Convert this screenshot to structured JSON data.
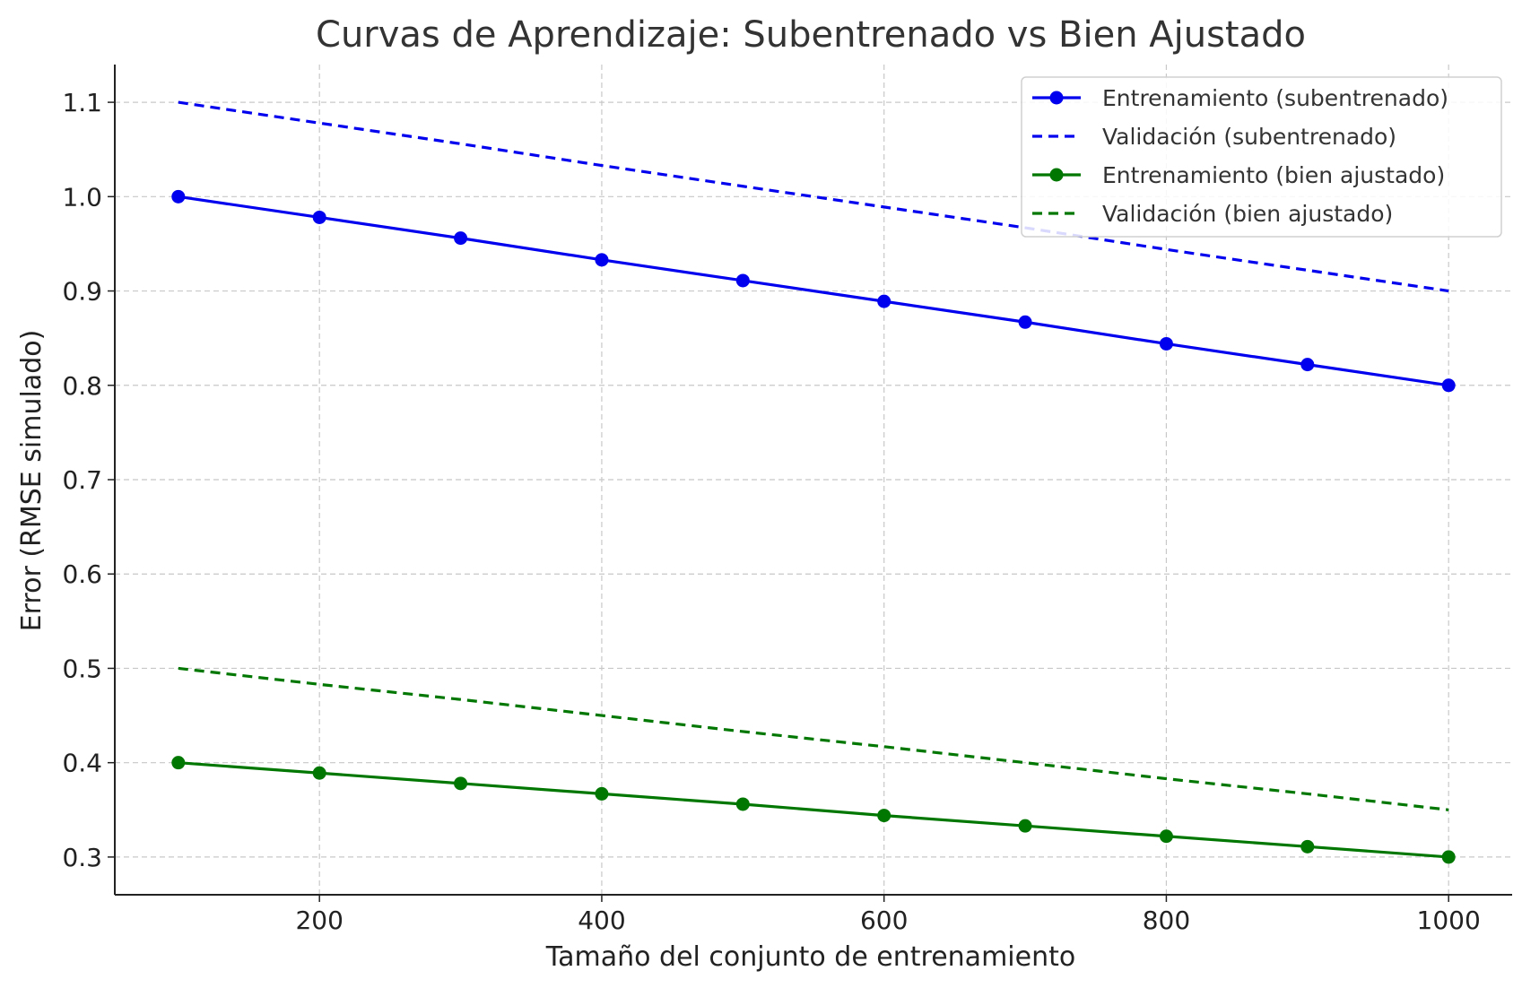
{
  "chart_data": {
    "type": "line",
    "title": "Curvas de Aprendizaje: Subentrenado vs Bien Ajustado",
    "xlabel": "Tamaño del conjunto de entrenamiento",
    "ylabel": "Error (RMSE simulado)",
    "xlim": [
      55,
      1045
    ],
    "ylim": [
      0.26,
      1.14
    ],
    "xticks": [
      200,
      400,
      600,
      800,
      1000
    ],
    "xtick_labels": [
      "200",
      "400",
      "600",
      "800",
      "1000"
    ],
    "yticks": [
      0.3,
      0.4,
      0.5,
      0.6,
      0.7,
      0.8,
      0.9,
      1.0,
      1.1
    ],
    "ytick_labels": [
      "0.3",
      "0.4",
      "0.5",
      "0.6",
      "0.7",
      "0.8",
      "0.9",
      "1.0",
      "1.1"
    ],
    "grid": true,
    "legend_position": "top-right",
    "x": [
      100,
      200,
      300,
      400,
      500,
      600,
      700,
      800,
      900,
      1000
    ],
    "series": [
      {
        "name": "Entrenamiento (subentrenado)",
        "color": "#0000ee",
        "style": "solid",
        "marker": "circle",
        "values": [
          1.0,
          0.978,
          0.956,
          0.933,
          0.911,
          0.889,
          0.867,
          0.844,
          0.822,
          0.8
        ]
      },
      {
        "name": "Validación (subentrenado)",
        "color": "#0000ee",
        "style": "dashed",
        "marker": "none",
        "values": [
          1.1,
          1.078,
          1.056,
          1.033,
          1.011,
          0.989,
          0.967,
          0.944,
          0.922,
          0.9
        ]
      },
      {
        "name": "Entrenamiento (bien ajustado)",
        "color": "#007700",
        "style": "solid",
        "marker": "circle",
        "values": [
          0.4,
          0.389,
          0.378,
          0.367,
          0.356,
          0.344,
          0.333,
          0.322,
          0.311,
          0.3
        ]
      },
      {
        "name": "Validación (bien ajustado)",
        "color": "#007700",
        "style": "dashed",
        "marker": "none",
        "values": [
          0.5,
          0.483,
          0.467,
          0.45,
          0.433,
          0.417,
          0.4,
          0.383,
          0.367,
          0.35
        ]
      }
    ]
  }
}
